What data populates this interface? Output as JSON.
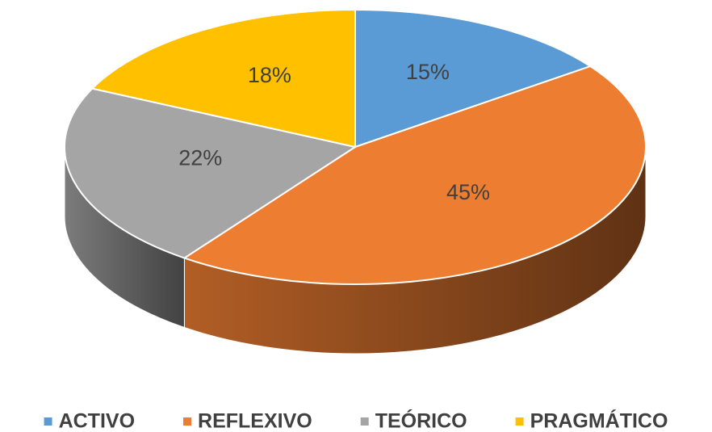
{
  "chart_data": {
    "type": "pie3d",
    "categories": [
      "ACTIVO",
      "REFLEXIVO",
      "TEÓRICO",
      "PRAGMÁTICO"
    ],
    "values": [
      15,
      45,
      22,
      18
    ],
    "value_labels": [
      "15%",
      "45%",
      "22%",
      "18%"
    ],
    "colors": [
      "#5b9bd5",
      "#ed7d31",
      "#a5a5a5",
      "#ffc000"
    ],
    "legend": "bottom"
  }
}
